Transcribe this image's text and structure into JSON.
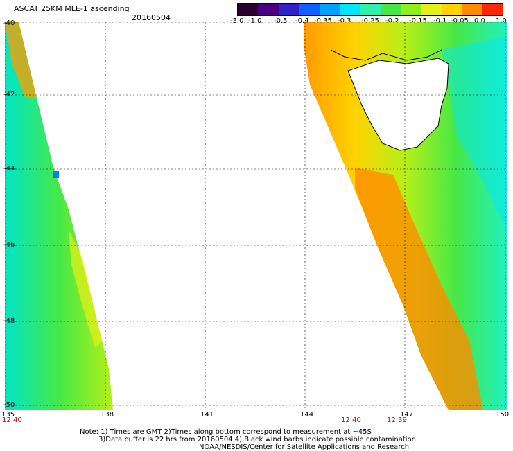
{
  "header": {
    "title": "ASCAT 25KM MLE-1 ascending",
    "date": "20160504"
  },
  "colorbar": {
    "labels": [
      "-3.0",
      "-1.0",
      "-0.5",
      "-0.4",
      "-0.35",
      "-0.3",
      "-0.25",
      "-0.2",
      "-0.15",
      "-0.1",
      "-0.05",
      "0.0",
      "1.0"
    ],
    "colors": [
      "#2a0030",
      "#4b0083",
      "#2f23c8",
      "#1060ff",
      "#00a2ff",
      "#00e6ff",
      "#30f0b0",
      "#46e846",
      "#8ef018",
      "#e6f018",
      "#ffd200",
      "#ff8c00",
      "#ff2800"
    ]
  },
  "axes": {
    "lat_labels": [
      "-40",
      "-42",
      "-44",
      "-46",
      "-48",
      "-50"
    ],
    "lon_labels": [
      "135",
      "138",
      "141",
      "144",
      "147",
      "150"
    ]
  },
  "times": {
    "left": "12:40",
    "mid1": "12:40",
    "mid2": "12:39"
  },
  "notes": {
    "line1": "Note: 1) Times are GMT 2)Times along bottom correspond to measurement at ~45S",
    "line2": "3)Data buffer is 22 hrs from 20160504 4) Black wind barbs indicate possible contamination",
    "line3": "NOAA/NESDIS/Center for Satellite Applications and Research"
  }
}
